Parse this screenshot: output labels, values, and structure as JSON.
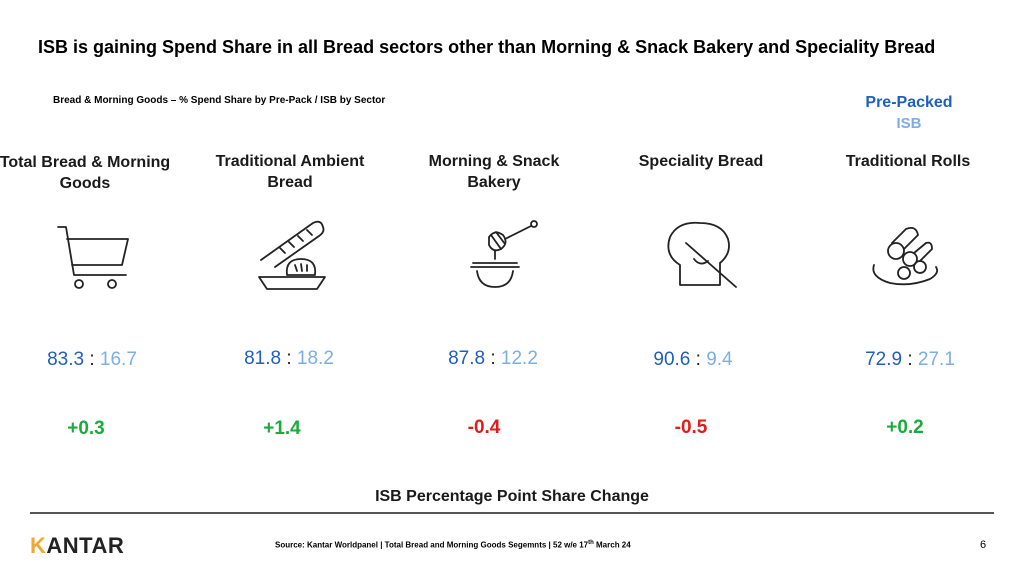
{
  "slide": {
    "title": "ISB is gaining Spend Share in all Bread sectors other than Morning & Snack Bakery and Speciality Bread",
    "subtitle": "Bread & Morning Goods – % Spend Share by Pre-Pack / ISB by Sector",
    "legend": {
      "prepacked": "Pre-Packed",
      "isb": "ISB"
    },
    "separator": ":",
    "sectors": [
      {
        "name": "Total Bread & Morning Goods",
        "icon": "shopping-cart-icon",
        "prepacked": "83.3",
        "isb": "16.7",
        "change": "+0.3",
        "trend": "positive"
      },
      {
        "name": "Traditional Ambient Bread",
        "icon": "bread-loaf-icon",
        "prepacked": "81.8",
        "isb": "18.2",
        "change": "+1.4",
        "trend": "positive"
      },
      {
        "name": "Morning & Snack Bakery",
        "icon": "honey-dipper-icon",
        "prepacked": "87.8",
        "isb": "12.2",
        "change": "-0.4",
        "trend": "negative"
      },
      {
        "name": "Speciality Bread",
        "icon": "bread-slice-icon",
        "prepacked": "90.6",
        "isb": "9.4",
        "change": "-0.5",
        "trend": "negative"
      },
      {
        "name": "Traditional Rolls",
        "icon": "rolls-plate-icon",
        "prepacked": "72.9",
        "isb": "27.1",
        "change": "+0.2",
        "trend": "positive"
      }
    ],
    "change_label": "ISB Percentage Point Share Change",
    "logo_first": "K",
    "logo_rest": "ANTAR",
    "source_pre": "Source: Kantar Worldpanel | Total Bread and Morning Goods Segemnts | 52 w/e 17",
    "source_sup": "th",
    "source_post": " March 24",
    "page_number": "6"
  },
  "colors": {
    "prepacked": "#1f5fbf",
    "isb": "#7aaee8",
    "positive": "#1aab3c",
    "negative": "#e21b1b"
  }
}
